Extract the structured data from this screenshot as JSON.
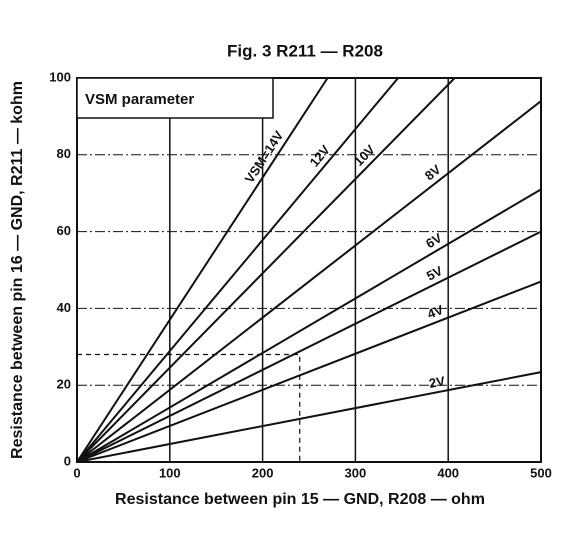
{
  "chart_data": {
    "type": "line",
    "title": "Fig. 3 R211 — R208",
    "x_label": "Resistance between pin 15 — GND, R208 — ohm",
    "y_label": "Resistance between pin 16 — GND, R211 — kohm",
    "legend_title": "VSM parameter",
    "xlim": [
      0,
      500
    ],
    "xticks": [
      0,
      100,
      200,
      300,
      400,
      500
    ],
    "ylim": [
      0,
      100
    ],
    "yticks": [
      0,
      20,
      40,
      60,
      80,
      100
    ],
    "grid": true,
    "color": "#111111",
    "series": [
      {
        "name": "VSM=14V",
        "x": [
          0,
          270
        ],
        "values": [
          0,
          100
        ]
      },
      {
        "name": "12V",
        "x": [
          0,
          346
        ],
        "values": [
          0,
          100
        ]
      },
      {
        "name": "10V",
        "x": [
          0,
          407
        ],
        "values": [
          0,
          100
        ]
      },
      {
        "name": "8V",
        "x": [
          0,
          500
        ],
        "values": [
          0,
          94
        ]
      },
      {
        "name": "6V",
        "x": [
          0,
          500
        ],
        "values": [
          0,
          71
        ]
      },
      {
        "name": "5V",
        "x": [
          0,
          500
        ],
        "values": [
          0,
          60
        ]
      },
      {
        "name": "4V",
        "x": [
          0,
          500
        ],
        "values": [
          0,
          47
        ]
      },
      {
        "name": "2V",
        "x": [
          0,
          500
        ],
        "values": [
          0,
          23.4
        ]
      }
    ],
    "reference_point": {
      "x": 240,
      "y": 28
    }
  }
}
